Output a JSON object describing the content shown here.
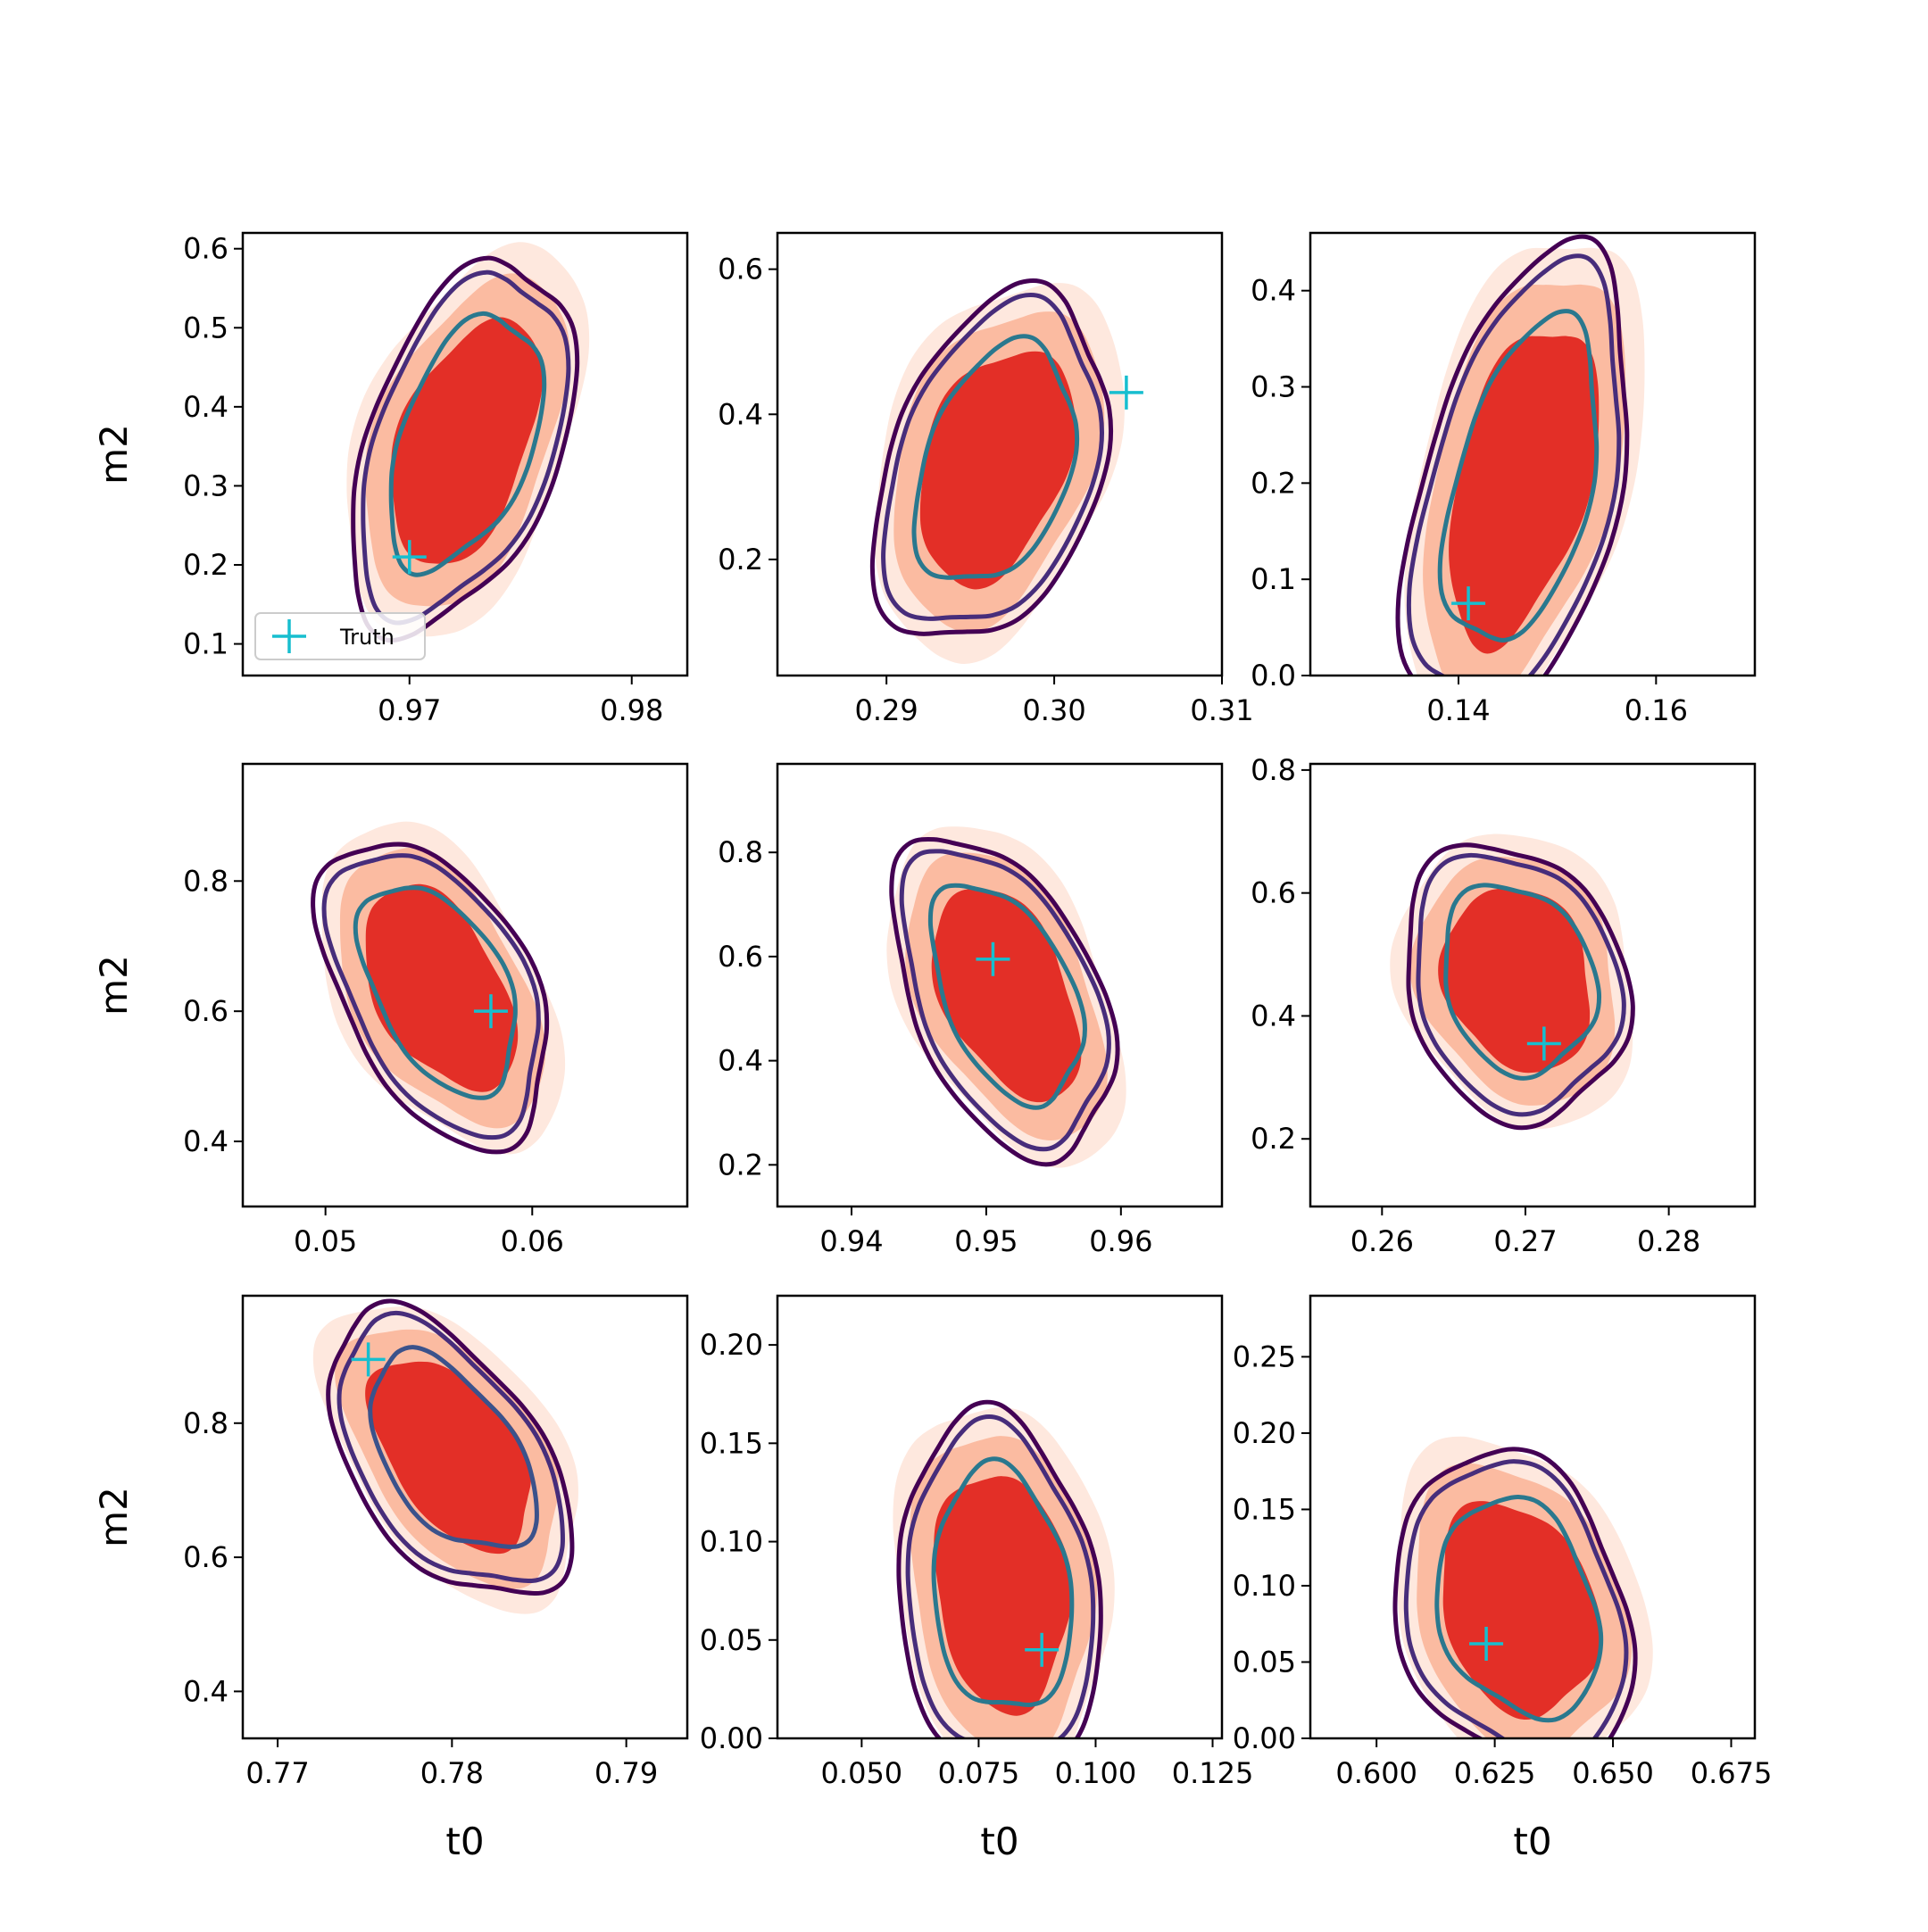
{
  "colors": {
    "fill_outer": "#fee8de",
    "fill_mid": "#fbbba1",
    "fill_inner": "#e32f27",
    "contour_outer": "#440154",
    "contour_mid": "#472d7b",
    "contour_inner": "#2a788e",
    "contour_inner_alt": "#3b528b",
    "truth_marker": "#17becf"
  },
  "chart_data": [
    {
      "type": "contour",
      "row": 0,
      "col": 0,
      "xlabel": "",
      "ylabel": "m2",
      "xlim": [
        0.9625,
        0.9825
      ],
      "ylim": [
        0.06,
        0.62
      ],
      "xticks": [
        "0.97",
        "0.98"
      ],
      "xtick_values": [
        0.97,
        0.98
      ],
      "yticks": [
        "0.1",
        "0.2",
        "0.3",
        "0.4",
        "0.5",
        "0.6"
      ],
      "ytick_values": [
        0.1,
        0.2,
        0.3,
        0.4,
        0.5,
        0.6
      ],
      "truth": {
        "x": 0.97,
        "y": 0.21
      },
      "legend": {
        "label": "Truth",
        "position": "lower-left"
      },
      "center": {
        "x": 0.9725,
        "y": 0.355
      },
      "spread": {
        "x": 0.0042,
        "y": 0.175
      },
      "tilt": 0.75
    },
    {
      "type": "contour",
      "row": 0,
      "col": 1,
      "xlabel": "",
      "ylabel": "",
      "xlim": [
        0.2835,
        0.31
      ],
      "ylim": [
        0.04,
        0.65
      ],
      "xticks": [
        "0.29",
        "0.30",
        "0.31"
      ],
      "xtick_values": [
        0.29,
        0.3,
        0.31
      ],
      "yticks": [
        "0.2",
        "0.4",
        "0.6"
      ],
      "ytick_values": [
        0.2,
        0.4,
        0.6
      ],
      "truth": {
        "x": 0.3043,
        "y": 0.43
      },
      "center": {
        "x": 0.2965,
        "y": 0.33
      },
      "spread": {
        "x": 0.0058,
        "y": 0.19
      },
      "tilt": 0.55
    },
    {
      "type": "contour",
      "row": 0,
      "col": 2,
      "xlabel": "",
      "ylabel": "",
      "xlim": [
        0.125,
        0.17
      ],
      "ylim": [
        0.0,
        0.46
      ],
      "xticks": [
        "0.14",
        "0.16"
      ],
      "xtick_values": [
        0.14,
        0.16
      ],
      "yticks": [
        "0.0",
        "0.1",
        "0.2",
        "0.3",
        "0.4"
      ],
      "ytick_values": [
        0.0,
        0.1,
        0.2,
        0.3,
        0.4
      ],
      "truth": {
        "x": 0.141,
        "y": 0.075
      },
      "center": {
        "x": 0.1465,
        "y": 0.2
      },
      "spread": {
        "x": 0.0095,
        "y": 0.185
      },
      "tilt": 0.75
    },
    {
      "type": "contour",
      "row": 1,
      "col": 0,
      "xlabel": "",
      "ylabel": "m2",
      "xlim": [
        0.046,
        0.0675
      ],
      "ylim": [
        0.3,
        0.98
      ],
      "xticks": [
        "0.05",
        "0.06"
      ],
      "xtick_values": [
        0.05,
        0.06
      ],
      "yticks": [
        "0.4",
        "0.6",
        "0.8"
      ],
      "ytick_values": [
        0.4,
        0.6,
        0.8
      ],
      "truth": {
        "x": 0.058,
        "y": 0.6
      },
      "center": {
        "x": 0.0555,
        "y": 0.635
      },
      "spread": {
        "x": 0.0046,
        "y": 0.175
      },
      "tilt": -0.78
    },
    {
      "type": "contour",
      "row": 1,
      "col": 1,
      "xlabel": "",
      "ylabel": "",
      "xlim": [
        0.9345,
        0.9675
      ],
      "ylim": [
        0.12,
        0.97
      ],
      "xticks": [
        "0.94",
        "0.95",
        "0.96"
      ],
      "xtick_values": [
        0.94,
        0.95,
        0.96
      ],
      "yticks": [
        "0.2",
        "0.4",
        "0.6",
        "0.8"
      ],
      "ytick_values": [
        0.2,
        0.4,
        0.6,
        0.8
      ],
      "truth": {
        "x": 0.9505,
        "y": 0.595
      },
      "center": {
        "x": 0.9515,
        "y": 0.53
      },
      "spread": {
        "x": 0.0068,
        "y": 0.23
      },
      "tilt": -0.75
    },
    {
      "type": "contour",
      "row": 1,
      "col": 2,
      "xlabel": "",
      "ylabel": "",
      "xlim": [
        0.255,
        0.286
      ],
      "ylim": [
        0.09,
        0.81
      ],
      "xticks": [
        "0.26",
        "0.27",
        "0.28"
      ],
      "xtick_values": [
        0.26,
        0.27,
        0.28
      ],
      "yticks": [
        "0.2",
        "0.4",
        "0.6",
        "0.8"
      ],
      "ytick_values": [
        0.2,
        0.4,
        0.6,
        0.8
      ],
      "truth": {
        "x": 0.2713,
        "y": 0.355
      },
      "center": {
        "x": 0.2695,
        "y": 0.46
      },
      "spread": {
        "x": 0.0065,
        "y": 0.185
      },
      "tilt": -0.25
    },
    {
      "type": "contour",
      "row": 2,
      "col": 0,
      "xlabel": "t0",
      "ylabel": "m2",
      "xlim": [
        0.768,
        0.7935
      ],
      "ylim": [
        0.33,
        0.99
      ],
      "xticks": [
        "0.77",
        "0.78",
        "0.79"
      ],
      "xtick_values": [
        0.77,
        0.78,
        0.79
      ],
      "yticks": [
        "0.4",
        "0.6",
        "0.8"
      ],
      "ytick_values": [
        0.4,
        0.6,
        0.8
      ],
      "truth": {
        "x": 0.7752,
        "y": 0.895
      },
      "center": {
        "x": 0.78,
        "y": 0.755
      },
      "spread": {
        "x": 0.0058,
        "y": 0.155
      },
      "tilt": -0.88
    },
    {
      "type": "contour",
      "row": 2,
      "col": 1,
      "xlabel": "t0",
      "ylabel": "",
      "xlim": [
        0.032,
        0.127
      ],
      "ylim": [
        0.0,
        0.225
      ],
      "xticks": [
        "0.050",
        "0.075",
        "0.100",
        "0.125"
      ],
      "xtick_values": [
        0.05,
        0.075,
        0.1,
        0.125
      ],
      "yticks": [
        "0.00",
        "0.05",
        "0.10",
        "0.15",
        "0.20"
      ],
      "ytick_values": [
        0.0,
        0.05,
        0.1,
        0.15,
        0.2
      ],
      "truth": {
        "x": 0.0885,
        "y": 0.045
      },
      "center": {
        "x": 0.08,
        "y": 0.075
      },
      "spread": {
        "x": 0.018,
        "y": 0.075
      },
      "tilt": -0.2
    },
    {
      "type": "contour",
      "row": 2,
      "col": 2,
      "xlabel": "t0",
      "ylabel": "",
      "xlim": [
        0.586,
        0.68
      ],
      "ylim": [
        0.0,
        0.29
      ],
      "xticks": [
        "0.600",
        "0.625",
        "0.650",
        "0.675"
      ],
      "xtick_values": [
        0.6,
        0.625,
        0.65,
        0.675
      ],
      "yticks": [
        "0.00",
        "0.05",
        "0.10",
        "0.15",
        "0.20",
        "0.25"
      ],
      "ytick_values": [
        0.0,
        0.05,
        0.1,
        0.15,
        0.2,
        0.25
      ],
      "truth": {
        "x": 0.6232,
        "y": 0.062
      },
      "center": {
        "x": 0.63,
        "y": 0.085
      },
      "spread": {
        "x": 0.021,
        "y": 0.085
      },
      "tilt": -0.35
    }
  ]
}
